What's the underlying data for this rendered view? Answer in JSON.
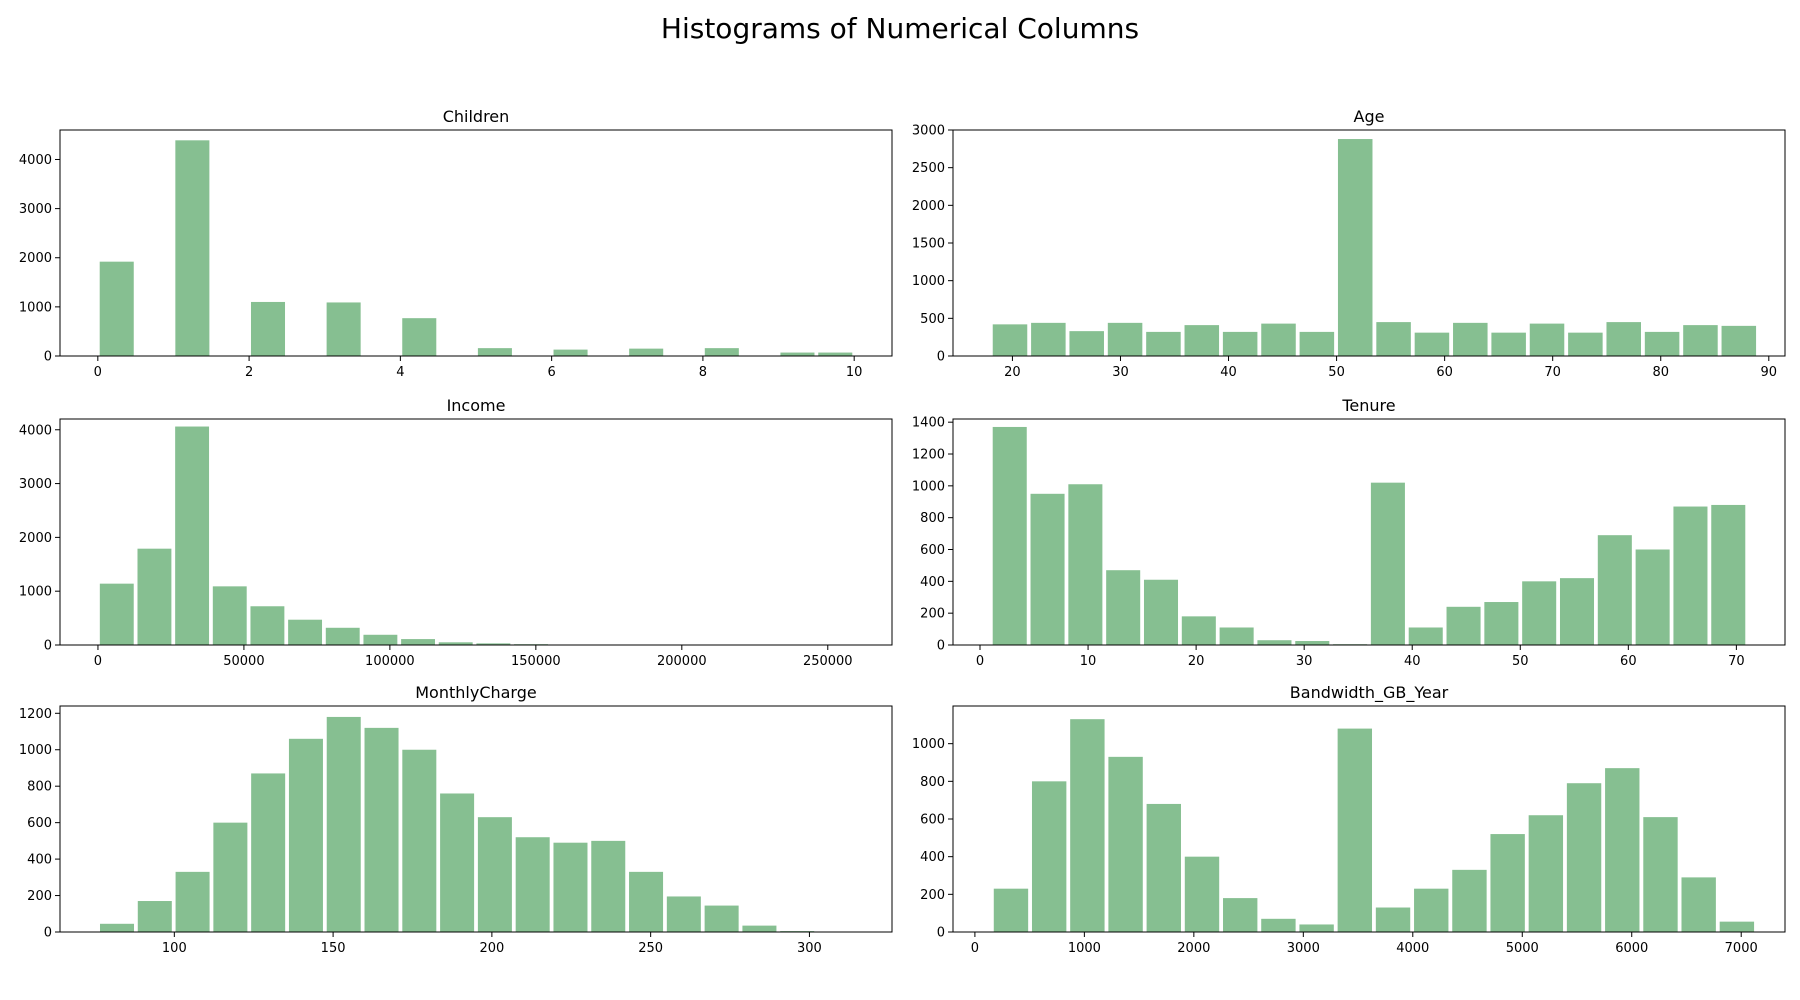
{
  "figure": {
    "title": "Histograms of Numerical Columns",
    "bar_color": "#86bf91"
  },
  "chart_data": [
    {
      "type": "bar",
      "title": "Children",
      "xlim": [
        -0.5,
        10.5
      ],
      "ylim": [
        0,
        4600
      ],
      "xticks": [
        0,
        2,
        4,
        6,
        8,
        10
      ],
      "yticks": [
        0,
        1000,
        2000,
        3000,
        4000
      ],
      "bin_edges": [
        0,
        0.5,
        1,
        1.5,
        2,
        2.5,
        3,
        3.5,
        4,
        4.5,
        5,
        5.5,
        6,
        6.5,
        7,
        7.5,
        8,
        8.5,
        9,
        9.5,
        10
      ],
      "values": [
        1920,
        0,
        4390,
        0,
        1100,
        0,
        1090,
        0,
        770,
        0,
        160,
        0,
        130,
        0,
        150,
        0,
        160,
        0,
        70,
        70
      ]
    },
    {
      "type": "bar",
      "title": "Age",
      "xlim": [
        14.5,
        91.5
      ],
      "ylim": [
        0,
        3000
      ],
      "xticks": [
        20,
        30,
        40,
        50,
        60,
        70,
        80,
        90
      ],
      "yticks": [
        0,
        500,
        1000,
        1500,
        2000,
        2500,
        3000
      ],
      "bin_edges": [
        18,
        21.55,
        25.1,
        28.65,
        32.2,
        35.75,
        39.3,
        42.85,
        46.4,
        49.95,
        53.5,
        57.05,
        60.6,
        64.15,
        67.7,
        71.25,
        74.8,
        78.35,
        81.9,
        85.45,
        89
      ],
      "values": [
        420,
        440,
        330,
        440,
        320,
        410,
        320,
        430,
        320,
        2880,
        450,
        310,
        440,
        310,
        430,
        310,
        450,
        320,
        410,
        400
      ]
    },
    {
      "type": "bar",
      "title": "Income",
      "xlim": [
        -13000,
        272000
      ],
      "ylim": [
        0,
        4200
      ],
      "xticks": [
        0,
        50000,
        100000,
        150000,
        200000,
        250000
      ],
      "yticks": [
        0,
        1000,
        2000,
        3000,
        4000
      ],
      "bin_edges": [
        0,
        12900,
        25800,
        38700,
        51600,
        64500,
        77400,
        90300,
        103200,
        116100,
        129000,
        141900,
        154800,
        167700,
        180600,
        193500,
        206400,
        219300,
        232200,
        245100,
        258000
      ],
      "values": [
        1140,
        1790,
        4060,
        1090,
        720,
        470,
        320,
        190,
        110,
        50,
        30,
        15,
        8,
        4,
        2,
        1,
        1,
        0,
        0,
        1
      ]
    },
    {
      "type": "bar",
      "title": "Tenure",
      "xlim": [
        -2.5,
        74.5
      ],
      "ylim": [
        0,
        1420
      ],
      "xticks": [
        0,
        10,
        20,
        30,
        40,
        50,
        60,
        70
      ],
      "yticks": [
        0,
        200,
        400,
        600,
        800,
        1000,
        1200,
        1400
      ],
      "bin_edges": [
        1,
        4.5,
        8,
        11.5,
        15,
        18.5,
        22,
        25.5,
        29,
        32.5,
        36,
        39.5,
        43,
        46.5,
        50,
        53.5,
        57,
        60.5,
        64,
        67.5,
        71
      ],
      "values": [
        1370,
        950,
        1010,
        470,
        410,
        180,
        110,
        30,
        25,
        5,
        1020,
        110,
        240,
        270,
        400,
        420,
        690,
        600,
        870,
        880
      ]
    },
    {
      "type": "bar",
      "title": "MonthlyCharge",
      "xlim": [
        64,
        326
      ],
      "ylim": [
        0,
        1240
      ],
      "xticks": [
        100,
        150,
        200,
        250,
        300
      ],
      "yticks": [
        0,
        200,
        400,
        600,
        800,
        1000,
        1200
      ],
      "bin_edges": [
        76,
        87.9,
        99.8,
        111.7,
        123.6,
        135.5,
        147.4,
        159.3,
        171.2,
        183.1,
        195,
        206.9,
        218.8,
        230.7,
        242.6,
        254.5,
        266.4,
        278.3,
        290.2,
        302.1,
        314
      ],
      "values": [
        45,
        170,
        330,
        600,
        870,
        1060,
        1180,
        1120,
        1000,
        760,
        630,
        520,
        490,
        500,
        330,
        195,
        145,
        35,
        5,
        0
      ]
    },
    {
      "type": "bar",
      "title": "Bandwidth_GB_Year",
      "xlim": [
        -200,
        7400
      ],
      "ylim": [
        0,
        1200
      ],
      "xticks": [
        0,
        1000,
        2000,
        3000,
        4000,
        5000,
        6000,
        7000
      ],
      "yticks": [
        0,
        200,
        400,
        600,
        800,
        1000
      ],
      "bin_edges": [
        155,
        504,
        853,
        1202,
        1551,
        1900,
        2249,
        2598,
        2947,
        3296,
        3645,
        3994,
        4343,
        4692,
        5041,
        5390,
        5739,
        6088,
        6437,
        6786,
        7135
      ],
      "values": [
        230,
        800,
        1130,
        930,
        680,
        400,
        180,
        70,
        40,
        1080,
        130,
        230,
        330,
        520,
        620,
        790,
        870,
        610,
        290,
        55
      ]
    }
  ]
}
